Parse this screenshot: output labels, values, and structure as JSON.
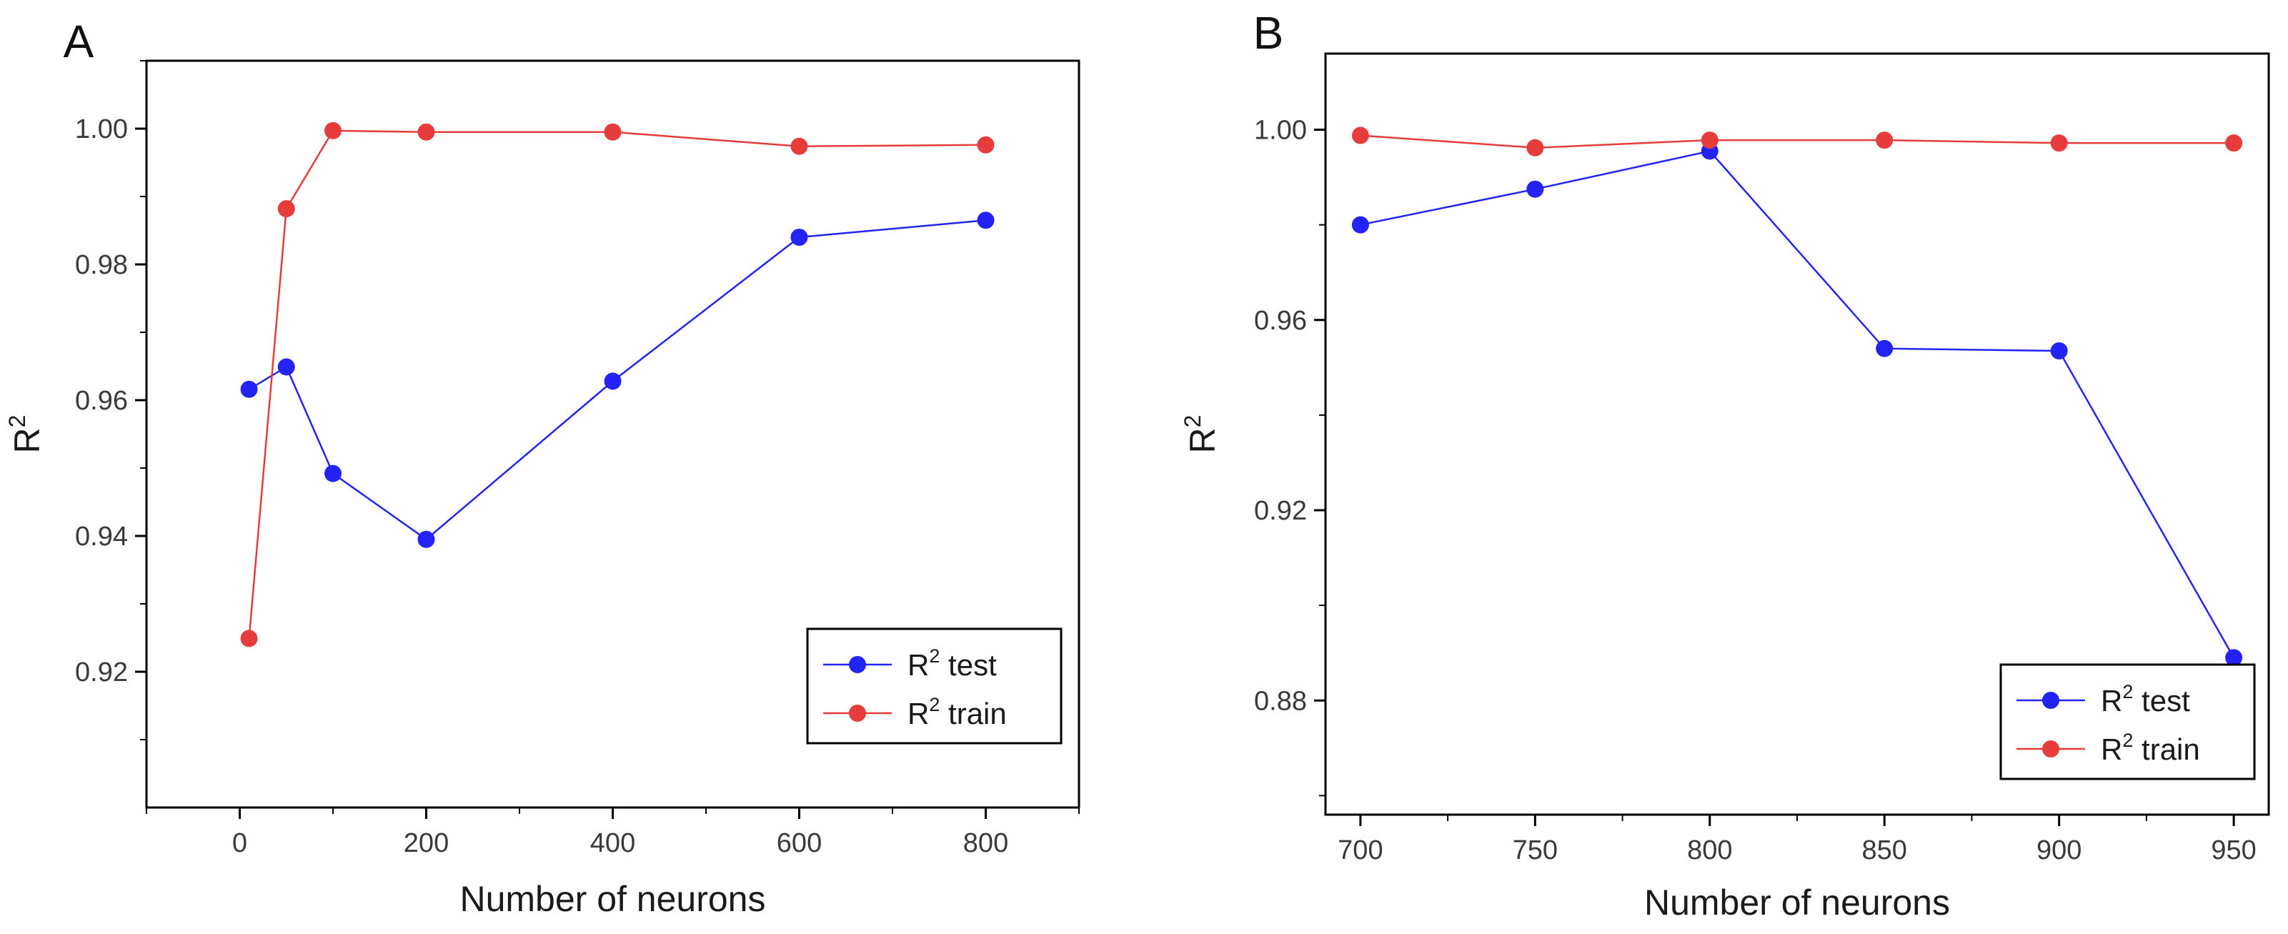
{
  "colors": {
    "test": "#2323f5",
    "train": "#e63c3c",
    "axis": "#000000"
  },
  "chart_data": [
    {
      "panel": "A",
      "type": "line",
      "title": "",
      "xlabel": "Number of neurons",
      "ylabel": "R",
      "ylabel_sup": "2",
      "xlim": [
        -100,
        900
      ],
      "ylim": [
        0.9,
        1.01
      ],
      "xticks": [
        0,
        200,
        400,
        600,
        800
      ],
      "xtick_labels": [
        "0",
        "200",
        "400",
        "600",
        "800"
      ],
      "yticks": [
        0.92,
        0.94,
        0.96,
        0.98,
        1.0
      ],
      "ytick_labels": [
        "0.92",
        "0.94",
        "0.96",
        "0.98",
        "1.00"
      ],
      "grid": false,
      "legend_position": "bottom-right",
      "series": [
        {
          "name": "R2 test",
          "label_base": "R",
          "label_sup": "2",
          "label_rest": "test",
          "color_key": "test",
          "x": [
            10,
            50,
            100,
            200,
            400,
            600,
            800
          ],
          "y": [
            0.9616,
            0.9649,
            0.9492,
            0.9395,
            0.9628,
            0.984,
            0.9865
          ]
        },
        {
          "name": "R2 train",
          "label_base": "R",
          "label_sup": "2",
          "label_rest": "train",
          "color_key": "train",
          "x": [
            10,
            50,
            100,
            200,
            400,
            600,
            800
          ],
          "y": [
            0.9249,
            0.9882,
            0.9997,
            0.9995,
            0.9995,
            0.9974,
            0.9976
          ]
        }
      ]
    },
    {
      "panel": "B",
      "type": "line",
      "title": "",
      "xlabel": "Number of neurons",
      "ylabel": "R",
      "ylabel_sup": "2",
      "xlim": [
        690,
        960
      ],
      "ylim": [
        0.856,
        1.016
      ],
      "xticks": [
        700,
        750,
        800,
        850,
        900,
        950
      ],
      "xtick_labels": [
        "700",
        "750",
        "800",
        "850",
        "900",
        "950"
      ],
      "yticks": [
        0.88,
        0.92,
        0.96,
        1.0
      ],
      "ytick_labels": [
        "0.88",
        "0.92",
        "0.96",
        "1.00"
      ],
      "grid": false,
      "legend_position": "bottom-right",
      "series": [
        {
          "name": "R2 test",
          "label_base": "R",
          "label_sup": "2",
          "label_rest": "test",
          "color_key": "test",
          "x": [
            700,
            750,
            800,
            850,
            900,
            950
          ],
          "y": [
            0.98,
            0.9875,
            0.9955,
            0.954,
            0.9535,
            0.889
          ]
        },
        {
          "name": "R2 train",
          "label_base": "R",
          "label_sup": "2",
          "label_rest": "train",
          "color_key": "train",
          "x": [
            700,
            750,
            800,
            850,
            900,
            950
          ],
          "y": [
            0.9988,
            0.9962,
            0.9978,
            0.9978,
            0.9972,
            0.9972
          ]
        }
      ]
    }
  ]
}
